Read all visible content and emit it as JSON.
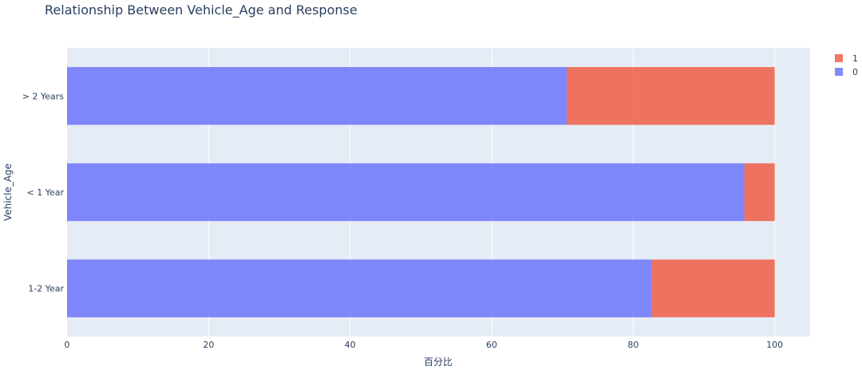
{
  "chart_data": {
    "type": "bar",
    "orientation": "horizontal",
    "barmode": "stack",
    "title": "Relationship Between Vehicle_Age and Response",
    "xlabel": "百分比",
    "ylabel": "Vehicle_Age",
    "xlim": [
      0,
      105
    ],
    "xticks": [
      0,
      20,
      40,
      60,
      80,
      100
    ],
    "grid": true,
    "legend_position": "top-right",
    "categories": [
      "1-2 Year",
      "< 1 Year",
      "> 2 Years"
    ],
    "series": [
      {
        "name": "0",
        "color": "#636efa",
        "values": [
          82.6,
          95.7,
          70.6
        ]
      },
      {
        "name": "1",
        "color": "#ef553b",
        "values": [
          17.4,
          4.3,
          29.4
        ]
      }
    ],
    "legend_order": [
      "1",
      "0"
    ]
  }
}
